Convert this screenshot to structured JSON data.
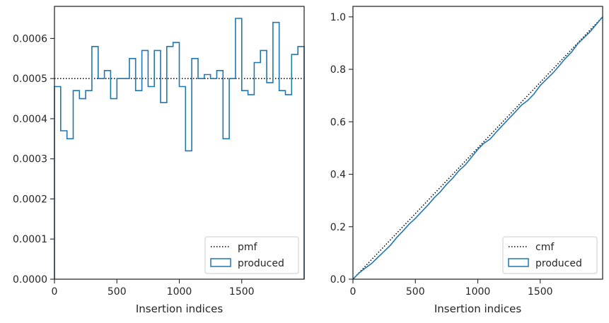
{
  "chart_data": [
    {
      "type": "step-histogram",
      "xlabel": "Insertion indices",
      "xlim": [
        0,
        2000
      ],
      "ylim": [
        0,
        0.00068
      ],
      "xticks": [
        0,
        500,
        1000,
        1500
      ],
      "xtick_labels": [
        "0",
        "500",
        "1000",
        "1500"
      ],
      "yticks": [
        0,
        0.0001,
        0.0002,
        0.0003,
        0.0004,
        0.0005,
        0.0006
      ],
      "ytick_labels": [
        "0.0000",
        "0.0001",
        "0.0002",
        "0.0003",
        "0.0004",
        "0.0005",
        "0.0006"
      ],
      "bin_width": 50,
      "reference": {
        "label": "pmf",
        "value": 0.0005,
        "style": "dotted",
        "color": "#000000"
      },
      "series": [
        {
          "name": "produced",
          "color": "#1f77b4",
          "values": [
            0.00048,
            0.00037,
            0.00035,
            0.00047,
            0.00045,
            0.00047,
            0.00058,
            0.0005,
            0.00052,
            0.00045,
            0.0005,
            0.0005,
            0.00055,
            0.00047,
            0.00057,
            0.00048,
            0.00057,
            0.00044,
            0.00058,
            0.00059,
            0.00048,
            0.00032,
            0.00055,
            0.0005,
            0.00051,
            0.0005,
            0.00052,
            0.00035,
            0.0005,
            0.00065,
            0.00047,
            0.00046,
            0.00054,
            0.00057,
            0.00049,
            0.00064,
            0.00047,
            0.00046,
            0.00056,
            0.00058
          ]
        }
      ],
      "legend": {
        "placement": "lower-right",
        "entries": [
          "pmf",
          "produced"
        ]
      }
    },
    {
      "type": "step-cumulative",
      "xlabel": "Insertion indices",
      "xlim": [
        0,
        2000
      ],
      "ylim": [
        0,
        1.04
      ],
      "xticks": [
        0,
        500,
        1000,
        1500
      ],
      "xtick_labels": [
        "0",
        "500",
        "1000",
        "1500"
      ],
      "yticks": [
        0,
        0.2,
        0.4,
        0.6,
        0.8,
        1.0
      ],
      "ytick_labels": [
        "0.0",
        "0.2",
        "0.4",
        "0.6",
        "0.8",
        "1.0"
      ],
      "reference": {
        "label": "cmf",
        "x": [
          0,
          2000
        ],
        "y": [
          0,
          1.0
        ],
        "style": "dotted",
        "color": "#000000"
      },
      "series": [
        {
          "name": "produced",
          "color": "#1f77b4",
          "x": [
            0,
            50,
            100,
            150,
            200,
            250,
            300,
            350,
            400,
            450,
            500,
            550,
            600,
            650,
            700,
            750,
            800,
            850,
            900,
            950,
            1000,
            1050,
            1100,
            1150,
            1200,
            1250,
            1300,
            1350,
            1400,
            1450,
            1500,
            1550,
            1600,
            1650,
            1700,
            1750,
            1800,
            1850,
            1900,
            1950,
            2000
          ],
          "y": [
            0,
            0.024,
            0.0425,
            0.06,
            0.0835,
            0.106,
            0.1295,
            0.1585,
            0.1835,
            0.2095,
            0.232,
            0.257,
            0.282,
            0.3095,
            0.333,
            0.3615,
            0.3855,
            0.414,
            0.436,
            0.465,
            0.4945,
            0.5185,
            0.5345,
            0.562,
            0.587,
            0.6125,
            0.6375,
            0.6635,
            0.681,
            0.706,
            0.7385,
            0.762,
            0.785,
            0.812,
            0.8405,
            0.865,
            0.897,
            0.9205,
            0.9435,
            0.9715,
            1.0
          ]
        }
      ],
      "legend": {
        "placement": "lower-right",
        "entries": [
          "cmf",
          "produced"
        ]
      }
    }
  ]
}
